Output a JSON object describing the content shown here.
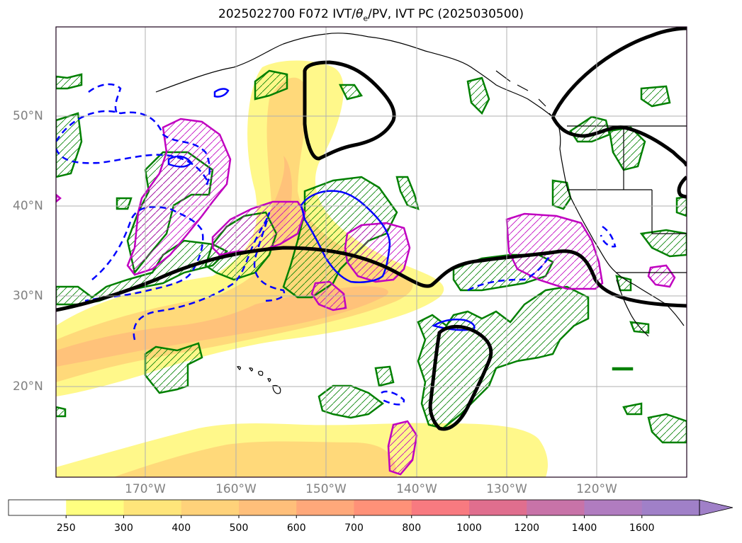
{
  "title": "2025022700 F072 IVT/θe/PV, IVT PC (2025030500)",
  "title_parts": {
    "a": "2025022700 F072 IVT/",
    "theta": "θ",
    "sub": "e",
    "b": "/PV, IVT PC (2025030500)"
  },
  "lat_labels": [
    "50°N",
    "40°N",
    "30°N",
    "20°N"
  ],
  "lon_labels": [
    "170°W",
    "160°W",
    "150°W",
    "140°W",
    "130°W",
    "120°W"
  ],
  "colorbar": {
    "levels": [
      "250",
      "300",
      "400",
      "500",
      "600",
      "700",
      "800",
      "1000",
      "1200",
      "1400",
      "1600"
    ],
    "colors": [
      "#ffffff",
      "#ffff80",
      "#ffe57a",
      "#ffd27a",
      "#ffbf7a",
      "#ffa87a",
      "#ff9178",
      "#f87a80",
      "#e06e8e",
      "#c873a8",
      "#b07cc0",
      "#a080c8"
    ]
  },
  "colors": {
    "ivt_light": "#fff88a",
    "ivt_mid": "#ffd97a",
    "ivt_dark": "#ffc27a",
    "theta_e": "#008000",
    "pv": "#c000c0",
    "pc_neg": "#0000ff",
    "pc_zero": "#000000",
    "coast": "#000000"
  }
}
